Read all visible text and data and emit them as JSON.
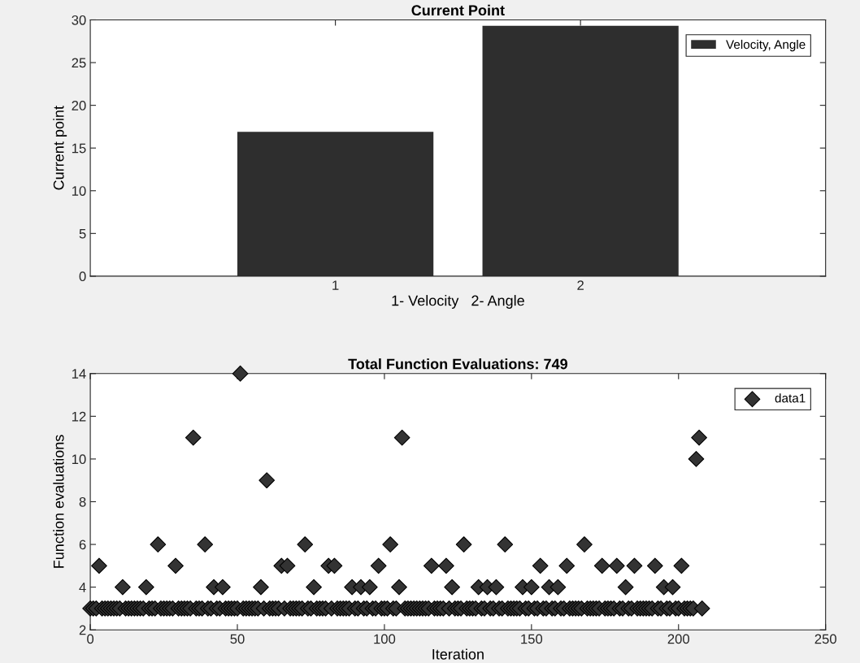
{
  "chart_data": [
    {
      "type": "bar",
      "title": "Current Point",
      "xlabel": "1- Velocity   2- Angle",
      "ylabel": "Current point",
      "x": [
        1,
        2
      ],
      "series": [
        {
          "name": "Velocity, Angle",
          "color": "#2e2e2e",
          "values": [
            16.9,
            29.3
          ]
        }
      ],
      "xlim": [
        0,
        3
      ],
      "xticks": [
        1,
        2
      ],
      "ylim": [
        0,
        30
      ],
      "yticks": [
        0,
        5,
        10,
        15,
        20,
        25,
        30
      ],
      "legend": "top right",
      "grid": false
    },
    {
      "type": "scatter",
      "title": "Total Function Evaluations: 749",
      "xlabel": "Iteration",
      "ylabel": "Function evaluations",
      "x": [
        0,
        1,
        2,
        3,
        4,
        5,
        6,
        7,
        8,
        9,
        10,
        11,
        12,
        13,
        14,
        15,
        16,
        17,
        18,
        19,
        20,
        21,
        22,
        23,
        24,
        25,
        26,
        27,
        28,
        29,
        30,
        31,
        32,
        33,
        34,
        35,
        36,
        37,
        38,
        39,
        40,
        41,
        42,
        43,
        44,
        45,
        46,
        47,
        48,
        49,
        50,
        51,
        52,
        53,
        54,
        55,
        56,
        57,
        58,
        59,
        60,
        61,
        62,
        63,
        64,
        65,
        66,
        67,
        68,
        69,
        70,
        71,
        72,
        73,
        74,
        75,
        76,
        77,
        78,
        79,
        80,
        81,
        82,
        83,
        84,
        85,
        86,
        87,
        88,
        89,
        90,
        91,
        92,
        93,
        94,
        95,
        96,
        97,
        98,
        99,
        100,
        101,
        102,
        103,
        104,
        105,
        106,
        107,
        108,
        109,
        110,
        111,
        112,
        113,
        114,
        115,
        116,
        117,
        118,
        119,
        120,
        121,
        122,
        123,
        124,
        125,
        126,
        127,
        128,
        129,
        130,
        131,
        132,
        133,
        134,
        135,
        136,
        137,
        138,
        139,
        140,
        141,
        142,
        143,
        144,
        145,
        146,
        147,
        148,
        149,
        150,
        151,
        152,
        153,
        154,
        155,
        156,
        157,
        158,
        159,
        160,
        161,
        162,
        163,
        164,
        165,
        166,
        167,
        168,
        169,
        170,
        171,
        172,
        173,
        174,
        175,
        176,
        177,
        178,
        179,
        180,
        181,
        182,
        183,
        184,
        185,
        186,
        187,
        188,
        189,
        190,
        191,
        192,
        193,
        194,
        195,
        196,
        197,
        198,
        199,
        200,
        201,
        202,
        203,
        204,
        205,
        206,
        207,
        208
      ],
      "series": [
        {
          "name": "data1",
          "color": "#333333",
          "values": [
            3,
            3,
            3,
            5,
            3,
            3,
            3,
            3,
            3,
            3,
            3,
            4,
            3,
            3,
            3,
            3,
            3,
            3,
            3,
            4,
            3,
            3,
            3,
            6,
            3,
            3,
            3,
            3,
            3,
            5,
            3,
            3,
            3,
            3,
            3,
            11,
            3,
            3,
            3,
            6,
            3,
            3,
            4,
            3,
            3,
            4,
            3,
            3,
            3,
            3,
            3,
            14,
            3,
            3,
            3,
            3,
            3,
            3,
            4,
            3,
            9,
            3,
            3,
            3,
            3,
            5,
            3,
            5,
            3,
            3,
            3,
            3,
            3,
            6,
            3,
            3,
            4,
            3,
            3,
            3,
            3,
            5,
            3,
            5,
            3,
            3,
            3,
            3,
            3,
            4,
            3,
            3,
            4,
            3,
            3,
            4,
            3,
            3,
            5,
            3,
            3,
            3,
            6,
            3,
            3,
            4,
            11,
            3,
            3,
            3,
            3,
            3,
            3,
            3,
            3,
            3,
            5,
            3,
            3,
            3,
            3,
            5,
            3,
            4,
            3,
            3,
            3,
            6,
            3,
            3,
            3,
            3,
            4,
            3,
            3,
            4,
            3,
            3,
            4,
            3,
            3,
            6,
            3,
            3,
            3,
            3,
            3,
            4,
            3,
            3,
            4,
            3,
            3,
            5,
            3,
            3,
            4,
            3,
            3,
            4,
            3,
            3,
            5,
            3,
            3,
            3,
            3,
            3,
            6,
            3,
            3,
            3,
            3,
            3,
            5,
            3,
            3,
            3,
            3,
            5,
            3,
            3,
            4,
            3,
            3,
            5,
            3,
            3,
            3,
            3,
            3,
            3,
            5,
            3,
            3,
            4,
            3,
            3,
            4,
            3,
            3,
            5,
            3,
            3,
            3,
            3,
            10,
            11,
            3
          ]
        }
      ],
      "xlim": [
        0,
        250
      ],
      "xticks": [
        0,
        50,
        100,
        150,
        200,
        250
      ],
      "ylim": [
        2,
        14
      ],
      "yticks": [
        2,
        4,
        6,
        8,
        10,
        12,
        14
      ],
      "legend": "top right",
      "marker": "diamond",
      "grid": false
    }
  ]
}
